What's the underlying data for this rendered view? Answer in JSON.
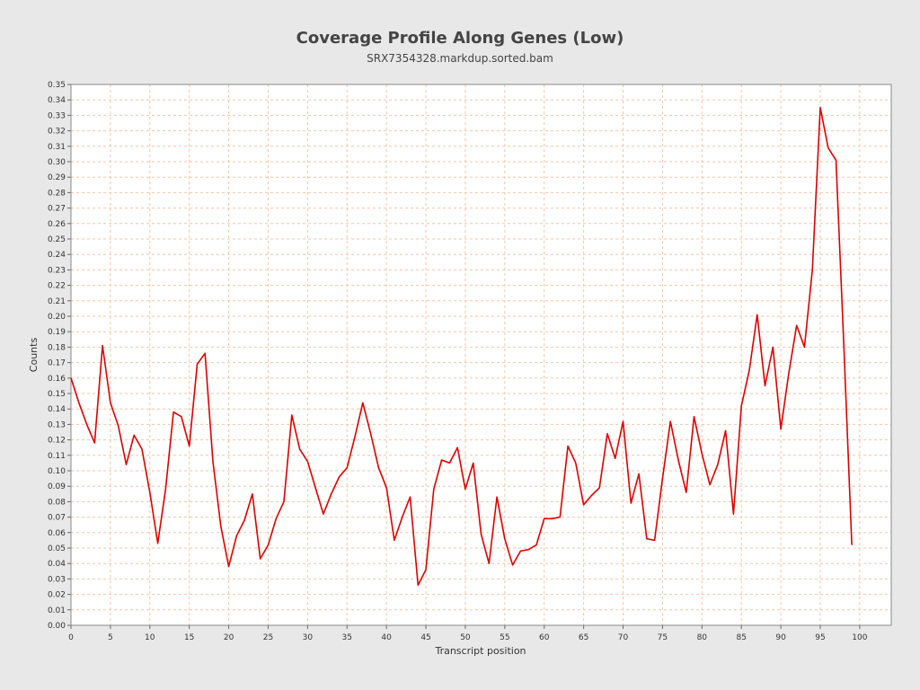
{
  "chart_data": {
    "type": "line",
    "title": "Coverage Profile Along Genes (Low)",
    "subtitle": "SRX7354328.markdup.sorted.bam",
    "xlabel": "Transcript position",
    "ylabel": "Counts",
    "xlim": [
      0,
      104
    ],
    "ylim": [
      0,
      0.35
    ],
    "x_ticks": [
      0,
      5,
      10,
      15,
      20,
      25,
      30,
      35,
      40,
      45,
      50,
      55,
      60,
      65,
      70,
      75,
      80,
      85,
      90,
      95,
      100
    ],
    "y_ticks": [
      0.0,
      0.01,
      0.02,
      0.03,
      0.04,
      0.05,
      0.06,
      0.07,
      0.08,
      0.09,
      0.1,
      0.11,
      0.12,
      0.13,
      0.14,
      0.15,
      0.16,
      0.17,
      0.18,
      0.19,
      0.2,
      0.21,
      0.22,
      0.23,
      0.24,
      0.25,
      0.26,
      0.27,
      0.28,
      0.29,
      0.3,
      0.31,
      0.32,
      0.33,
      0.34,
      0.35
    ],
    "x_tick_labels": [
      "0",
      "5",
      "10",
      "15",
      "20",
      "25",
      "30",
      "35",
      "40",
      "45",
      "50",
      "55",
      "60",
      "65",
      "70",
      "75",
      "80",
      "85",
      "90",
      "95",
      "100"
    ],
    "y_tick_labels": [
      "0.00",
      "0.01",
      "0.02",
      "0.03",
      "0.04",
      "0.05",
      "0.06",
      "0.07",
      "0.08",
      "0.09",
      "0.10",
      "0.11",
      "0.12",
      "0.13",
      "0.14",
      "0.15",
      "0.16",
      "0.17",
      "0.18",
      "0.19",
      "0.20",
      "0.21",
      "0.22",
      "0.23",
      "0.24",
      "0.25",
      "0.26",
      "0.27",
      "0.28",
      "0.29",
      "0.30",
      "0.31",
      "0.32",
      "0.33",
      "0.34",
      "0.35"
    ],
    "grid": true,
    "colors": {
      "line": "#dd0000",
      "grid": "#f2c6a8",
      "plot_background": "#ffffff",
      "page_background": "#e8e8e8"
    },
    "series": [
      {
        "x": [
          0,
          1,
          2,
          3,
          4,
          5,
          6,
          7,
          8,
          9,
          10,
          11,
          12,
          13,
          14,
          15,
          16,
          17,
          18,
          19,
          20,
          21,
          22,
          23,
          24,
          25,
          26,
          27,
          28,
          29,
          30,
          31,
          32,
          33,
          34,
          35,
          36,
          37,
          38,
          39,
          40,
          41,
          42,
          43,
          44,
          45,
          46,
          47,
          48,
          49,
          50,
          51,
          52,
          53,
          54,
          55,
          56,
          57,
          58,
          59,
          60,
          61,
          62,
          63,
          64,
          65,
          66,
          67,
          68,
          69,
          70,
          71,
          72,
          73,
          74,
          75,
          76,
          77,
          78,
          79,
          80,
          81,
          82,
          83,
          84,
          85,
          86,
          87,
          88,
          89,
          90,
          91,
          92,
          93,
          94,
          95,
          96,
          97,
          98,
          99
        ],
        "values": [
          0.16,
          0.144,
          0.13,
          0.118,
          0.181,
          0.144,
          0.129,
          0.104,
          0.123,
          0.114,
          0.086,
          0.053,
          0.088,
          0.138,
          0.135,
          0.116,
          0.169,
          0.176,
          0.106,
          0.064,
          0.038,
          0.058,
          0.068,
          0.085,
          0.043,
          0.052,
          0.069,
          0.08,
          0.136,
          0.114,
          0.106,
          0.089,
          0.072,
          0.085,
          0.096,
          0.102,
          0.122,
          0.144,
          0.124,
          0.102,
          0.089,
          0.055,
          0.07,
          0.083,
          0.026,
          0.036,
          0.088,
          0.107,
          0.105,
          0.115,
          0.088,
          0.105,
          0.059,
          0.04,
          0.083,
          0.056,
          0.039,
          0.048,
          0.049,
          0.052,
          0.069,
          0.069,
          0.07,
          0.116,
          0.105,
          0.078,
          0.084,
          0.089,
          0.124,
          0.108,
          0.132,
          0.079,
          0.098,
          0.056,
          0.055,
          0.095,
          0.132,
          0.107,
          0.086,
          0.135,
          0.111,
          0.091,
          0.104,
          0.126,
          0.072,
          0.142,
          0.165,
          0.201,
          0.155,
          0.18,
          0.127,
          0.163,
          0.194,
          0.18,
          0.23,
          0.335,
          0.309,
          0.301,
          0.18,
          0.052
        ]
      }
    ]
  }
}
